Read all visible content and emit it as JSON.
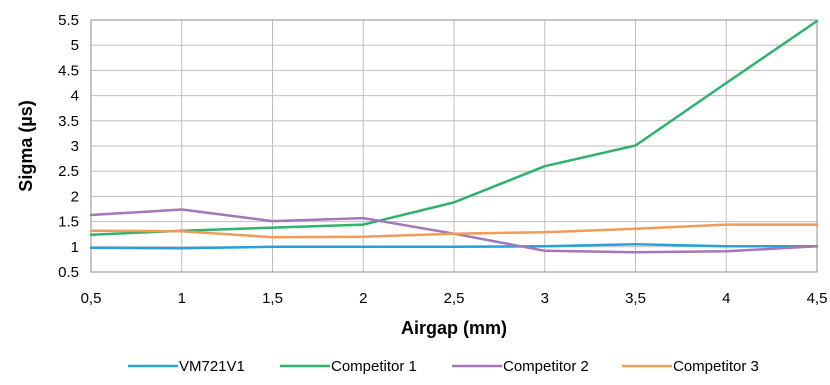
{
  "chart_data": {
    "type": "line",
    "xlabel": "Airgap (mm)",
    "ylabel": "Sigma (µs)",
    "x": [
      0.5,
      1,
      1.5,
      2,
      2.5,
      3,
      3.5,
      4,
      4.5
    ],
    "x_tick_labels": [
      "0,5",
      "1",
      "1,5",
      "2",
      "2,5",
      "3",
      "3,5",
      "4",
      "4,5"
    ],
    "y_tick_values": [
      0.5,
      1,
      1.5,
      2,
      2.5,
      3,
      3.5,
      4,
      4.5,
      5,
      5.5
    ],
    "y_tick_labels": [
      "0.5",
      "1",
      "1.5",
      "2",
      "2.5",
      "3",
      "3.5",
      "4",
      "4.5",
      "5",
      "5.5"
    ],
    "xlim": [
      0.5,
      4.5
    ],
    "ylim": [
      0.5,
      5.5
    ],
    "grid": true,
    "legend_position": "bottom",
    "series": [
      {
        "name": "VM721V1",
        "color": "#2a9fd8",
        "values": [
          0.98,
          0.97,
          1.0,
          1.0,
          1.0,
          1.01,
          1.05,
          1.01,
          1.01
        ]
      },
      {
        "name": "Competitor 1",
        "color": "#2fb26b",
        "values": [
          1.24,
          1.32,
          1.38,
          1.44,
          1.88,
          2.6,
          3.01,
          4.25,
          5.48
        ]
      },
      {
        "name": "Competitor 2",
        "color": "#a576b8",
        "values": [
          1.63,
          1.74,
          1.51,
          1.57,
          1.26,
          0.92,
          0.89,
          0.91,
          1.01
        ]
      },
      {
        "name": "Competitor 3",
        "color": "#f29a57",
        "values": [
          1.32,
          1.31,
          1.19,
          1.2,
          1.26,
          1.29,
          1.36,
          1.44,
          1.44
        ]
      }
    ]
  }
}
